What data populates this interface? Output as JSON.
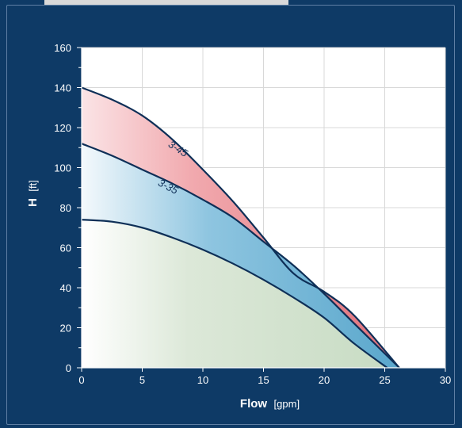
{
  "chart_data": {
    "type": "area",
    "title": "",
    "xlabel": "Flow",
    "xunit": "[gpm]",
    "ylabel": "H",
    "yunit": "[ft]",
    "xlim": [
      0,
      30
    ],
    "ylim": [
      0,
      160
    ],
    "xticks": [
      0,
      5,
      10,
      15,
      20,
      25,
      30
    ],
    "yticks": [
      0,
      20,
      40,
      60,
      80,
      100,
      120,
      140,
      160
    ],
    "grid": true,
    "series": [
      {
        "name": "3-45",
        "color": "#e0707a",
        "points": [
          [
            0,
            140
          ],
          [
            2.5,
            134
          ],
          [
            5,
            126
          ],
          [
            7.5,
            114
          ],
          [
            10,
            99
          ],
          [
            12.5,
            83
          ],
          [
            15,
            65
          ],
          [
            17.5,
            47
          ],
          [
            20,
            38
          ],
          [
            22.5,
            26
          ],
          [
            26.2,
            0
          ]
        ]
      },
      {
        "name": "3-35",
        "color": "#5aa7cc",
        "points": [
          [
            0,
            112
          ],
          [
            2.5,
            106
          ],
          [
            5,
            99
          ],
          [
            7.5,
            92
          ],
          [
            10,
            84
          ],
          [
            12.5,
            75
          ],
          [
            15,
            63
          ],
          [
            17.5,
            51
          ],
          [
            20,
            37
          ],
          [
            22.5,
            22
          ],
          [
            26.2,
            0
          ]
        ]
      },
      {
        "name": "",
        "color": "#c8dcc4",
        "points": [
          [
            0,
            74
          ],
          [
            2.5,
            73
          ],
          [
            5,
            70
          ],
          [
            7.5,
            65
          ],
          [
            10,
            59
          ],
          [
            12.5,
            52
          ],
          [
            15,
            44
          ],
          [
            17.5,
            35
          ],
          [
            20,
            25
          ],
          [
            22.5,
            12
          ],
          [
            25.2,
            0
          ]
        ]
      }
    ]
  },
  "colors": {
    "frame_bg": "#0e3a66",
    "plot_bg": "#ffffff",
    "grid": "#d8d8d8",
    "curve": "#0e2f57",
    "label_text": "#0e2f57"
  }
}
